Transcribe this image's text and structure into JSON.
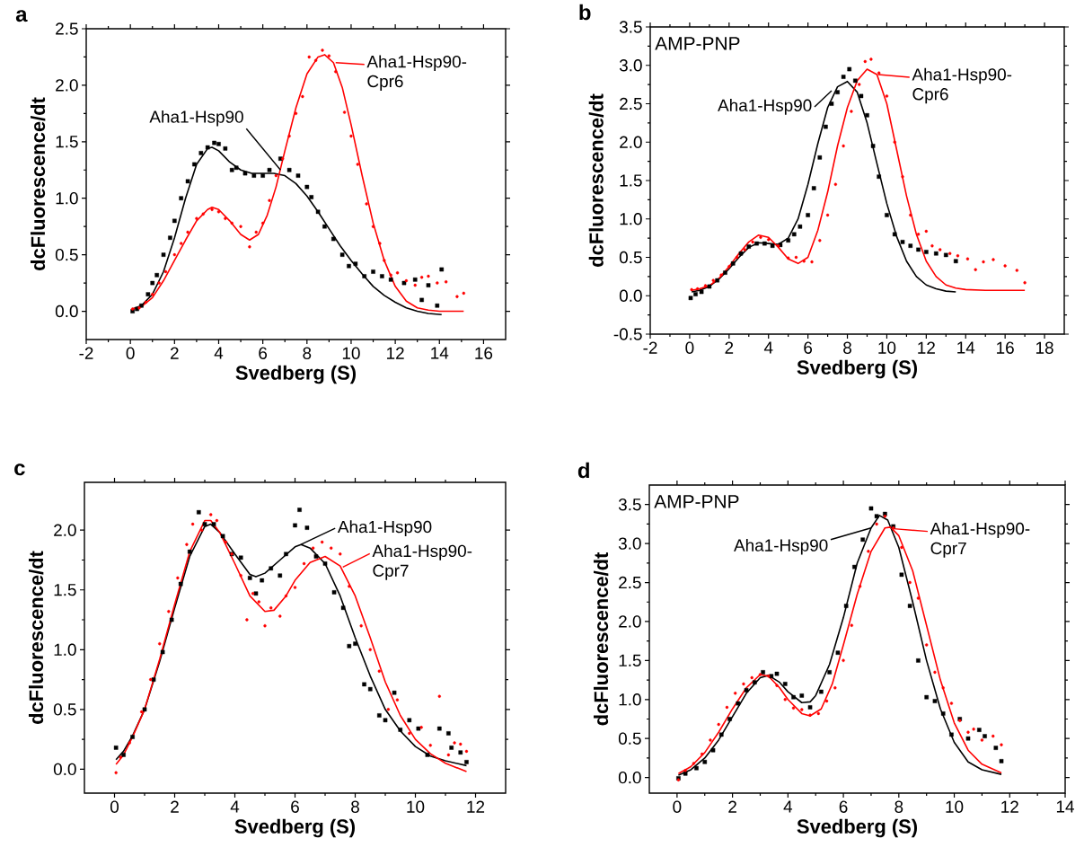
{
  "chart_data": [
    {
      "type": "scatter",
      "title": "a",
      "xlabel": "Svedberg (S)",
      "ylabel": "dcFluorescence/dt",
      "xlim": [
        -2,
        17
      ],
      "ylim": [
        -0.25,
        2.5
      ],
      "xticks": [
        -2,
        0,
        2,
        4,
        6,
        8,
        10,
        12,
        14,
        16
      ],
      "yticks": [
        {
          "value": 0,
          "label": "0.0"
        },
        0.5,
        {
          "value": 1,
          "label": "1.0"
        },
        1.5,
        {
          "value": 2,
          "label": "2.0"
        },
        2.5
      ],
      "series": [
        {
          "type": "scatter",
          "color": "#000000",
          "marker": "square",
          "x": [
            0.1,
            0.3,
            0.5,
            0.8,
            1,
            1.2,
            1.5,
            1.8,
            2,
            2.3,
            2.6,
            2.9,
            3.2,
            3.5,
            3.8,
            4,
            4.3,
            4.6,
            4.8,
            5.2,
            5.6,
            6,
            6.3,
            6.8,
            7.2,
            7.6,
            8,
            8.2,
            8.5,
            8.8,
            9.2,
            9.6,
            9.9,
            10.2,
            10.6,
            11,
            11.4,
            11.8,
            12.4,
            12.9,
            13.2,
            13.5,
            13.9,
            14.1
          ],
          "values": [
            0.0,
            0.02,
            0.05,
            0.15,
            0.25,
            0.32,
            0.5,
            0.65,
            0.8,
            1.0,
            1.15,
            1.3,
            1.4,
            1.45,
            1.49,
            1.48,
            1.44,
            1.25,
            1.27,
            1.22,
            1.2,
            1.2,
            1.25,
            1.35,
            1.25,
            1.2,
            1.1,
            1.01,
            0.88,
            0.75,
            0.64,
            0.5,
            0.4,
            0.42,
            0.31,
            0.35,
            0.31,
            0.28,
            0.25,
            0.28,
            0.1,
            0.23,
            0.05,
            0.37
          ]
        },
        {
          "type": "scatter",
          "color": "#ff0000",
          "marker": "circle",
          "x": [
            0.1,
            0.4,
            0.7,
            1,
            1.3,
            1.6,
            2,
            2.3,
            2.6,
            3,
            3.3,
            3.7,
            4,
            4.3,
            4.6,
            5,
            5.4,
            5.7,
            6,
            6.3,
            6.6,
            6.9,
            7.2,
            7.5,
            7.8,
            8.1,
            8.4,
            8.7,
            9,
            9.3,
            9.7,
            10,
            10.3,
            10.7,
            11,
            11.3,
            11.5,
            11.8,
            12.1,
            12.5,
            12.9,
            13.2,
            13.5,
            13.9,
            14.3,
            14.8,
            15.1
          ],
          "values": [
            0.02,
            0.03,
            0.08,
            0.15,
            0.25,
            0.35,
            0.5,
            0.6,
            0.7,
            0.82,
            0.86,
            0.9,
            0.88,
            0.82,
            0.78,
            0.75,
            0.57,
            0.7,
            0.78,
            0.98,
            1.2,
            1.35,
            1.55,
            1.75,
            1.9,
            2.25,
            2.22,
            2.31,
            2.26,
            2.12,
            1.76,
            1.55,
            1.3,
            0.95,
            0.75,
            0.6,
            0.45,
            0.32,
            0.34,
            0.27,
            0.23,
            0.3,
            0.31,
            0.25,
            0.26,
            0.13,
            0.16
          ]
        },
        {
          "type": "line",
          "color": "#000000",
          "marker": "none",
          "x": [
            0.1,
            0.5,
            1,
            1.5,
            2,
            2.5,
            3,
            3.5,
            3.7,
            4,
            4.5,
            5,
            5.5,
            6,
            6.5,
            7,
            7.5,
            8,
            8.5,
            9,
            9.5,
            10,
            10.5,
            11,
            11.5,
            12,
            12.5,
            13,
            13.5,
            14.1
          ],
          "values": [
            0.02,
            0.05,
            0.15,
            0.35,
            0.65,
            1.0,
            1.3,
            1.44,
            1.45,
            1.42,
            1.32,
            1.25,
            1.22,
            1.22,
            1.22,
            1.2,
            1.13,
            1.02,
            0.88,
            0.73,
            0.58,
            0.45,
            0.33,
            0.22,
            0.14,
            0.08,
            0.03,
            0.0,
            -0.02,
            -0.03
          ]
        },
        {
          "type": "line",
          "color": "#ff0000",
          "marker": "none",
          "x": [
            0.1,
            0.5,
            1,
            1.5,
            2,
            2.5,
            3,
            3.5,
            3.7,
            4,
            4.5,
            5,
            5.4,
            5.8,
            6.2,
            6.6,
            7,
            7.5,
            8,
            8.5,
            8.8,
            9.2,
            9.6,
            10,
            10.5,
            11,
            11.5,
            12,
            12.5,
            13,
            13.5,
            14,
            15.1
          ],
          "values": [
            0.02,
            0.04,
            0.12,
            0.27,
            0.45,
            0.63,
            0.8,
            0.9,
            0.92,
            0.9,
            0.8,
            0.68,
            0.63,
            0.68,
            0.85,
            1.1,
            1.42,
            1.8,
            2.1,
            2.25,
            2.27,
            2.2,
            1.98,
            1.65,
            1.2,
            0.78,
            0.45,
            0.22,
            0.09,
            0.03,
            0.01,
            0.0,
            0.0
          ]
        }
      ],
      "annotations": [
        {
          "text": "Aha1-Hsp90",
          "x": 6.8,
          "y": 1.25
        },
        {
          "text": "Aha1-Hsp90-Cpr6",
          "x": 9.3,
          "y": 2.2
        }
      ]
    },
    {
      "type": "scatter",
      "title": "b",
      "xlabel": "Svedberg (S)",
      "ylabel": "dcFluorescence/dt",
      "xlim": [
        -2,
        19
      ],
      "ylim": [
        -0.5,
        3.5
      ],
      "xticks": [
        -2,
        0,
        2,
        4,
        6,
        8,
        10,
        12,
        14,
        16,
        18
      ],
      "yticks": [
        -0.5,
        {
          "value": 0,
          "label": "0.0"
        },
        0.5,
        {
          "value": 1,
          "label": "1.0"
        },
        1.5,
        {
          "value": 2,
          "label": "2.0"
        },
        2.5,
        {
          "value": 3,
          "label": "3.0"
        },
        3.5
      ],
      "series": [
        {
          "type": "scatter",
          "color": "#000000",
          "marker": "square",
          "x": [
            0.05,
            0.3,
            0.6,
            1,
            1.4,
            1.8,
            2.2,
            2.6,
            3,
            3.4,
            3.8,
            4.2,
            4.6,
            5,
            5.3,
            5.6,
            6,
            6.3,
            6.6,
            6.9,
            7.2,
            7.5,
            7.8,
            8.1,
            8.4,
            8.7,
            9,
            9.3,
            9.6,
            10,
            10.4,
            10.8,
            11.2,
            11.6,
            12,
            12.5,
            13,
            13.5
          ],
          "values": [
            -0.03,
            0.02,
            0.05,
            0.12,
            0.2,
            0.3,
            0.42,
            0.55,
            0.64,
            0.68,
            0.68,
            0.65,
            0.66,
            0.72,
            0.8,
            0.9,
            1.05,
            1.4,
            1.8,
            2.2,
            2.5,
            2.65,
            2.85,
            2.95,
            2.8,
            2.6,
            2.35,
            1.95,
            1.55,
            1.05,
            0.8,
            0.7,
            0.65,
            0.6,
            0.57,
            0.55,
            0.53,
            0.45
          ]
        },
        {
          "type": "scatter",
          "color": "#ff0000",
          "marker": "circle",
          "x": [
            0.1,
            0.4,
            0.8,
            1.2,
            1.6,
            2,
            2.4,
            2.8,
            3.2,
            3.6,
            4,
            4.5,
            5,
            5.4,
            5.8,
            6.2,
            6.6,
            7,
            7.4,
            7.8,
            8.2,
            8.6,
            8.9,
            9.2,
            9.6,
            10,
            10.4,
            10.8,
            11.2,
            11.6,
            12,
            12.3,
            12.7,
            13.2,
            13.6,
            14.1,
            14.5,
            14.9,
            15.4,
            16,
            16.6,
            17
          ],
          "values": [
            0.08,
            0.09,
            0.13,
            0.2,
            0.27,
            0.38,
            0.5,
            0.6,
            0.7,
            0.76,
            0.73,
            0.65,
            0.49,
            0.5,
            0.45,
            0.44,
            0.72,
            1.05,
            1.45,
            1.95,
            2.4,
            2.75,
            3.05,
            3.08,
            2.9,
            2.6,
            2.0,
            1.55,
            1.05,
            0.8,
            0.84,
            0.65,
            0.6,
            0.55,
            0.52,
            0.48,
            0.34,
            0.44,
            0.47,
            0.39,
            0.33,
            0.17
          ]
        },
        {
          "type": "line",
          "color": "#000000",
          "marker": "none",
          "x": [
            0.1,
            0.5,
            1,
            1.5,
            2,
            2.5,
            3,
            3.5,
            4,
            4.5,
            5,
            5.5,
            6,
            6.5,
            7,
            7.5,
            8,
            8.5,
            9,
            9.5,
            10,
            10.5,
            11,
            11.5,
            12,
            12.5,
            13,
            13.5
          ],
          "values": [
            0.05,
            0.07,
            0.12,
            0.22,
            0.35,
            0.5,
            0.63,
            0.69,
            0.68,
            0.67,
            0.75,
            1.0,
            1.45,
            1.98,
            2.45,
            2.72,
            2.79,
            2.65,
            2.25,
            1.72,
            1.2,
            0.77,
            0.45,
            0.25,
            0.14,
            0.09,
            0.06,
            0.05
          ]
        },
        {
          "type": "line",
          "color": "#ff0000",
          "marker": "none",
          "x": [
            0.1,
            0.5,
            1,
            1.5,
            2,
            2.5,
            3,
            3.5,
            4,
            4.5,
            5,
            5.5,
            6,
            6.5,
            7,
            7.5,
            8,
            8.5,
            9,
            9.5,
            10,
            10.5,
            11,
            11.5,
            12,
            12.5,
            13,
            13.5,
            14,
            15,
            17
          ],
          "values": [
            0.07,
            0.09,
            0.13,
            0.23,
            0.38,
            0.55,
            0.7,
            0.79,
            0.76,
            0.63,
            0.48,
            0.42,
            0.5,
            0.85,
            1.35,
            1.95,
            2.45,
            2.8,
            2.95,
            2.88,
            2.5,
            1.9,
            1.3,
            0.8,
            0.45,
            0.25,
            0.14,
            0.1,
            0.08,
            0.07,
            0.07
          ]
        }
      ],
      "annotations": [
        "AMP-PNP",
        {
          "text": "Aha1-Hsp90",
          "x": 7.2,
          "y": 2.67
        },
        {
          "text": "Aha1-Hsp90-Cpr6",
          "x": 9.56,
          "y": 2.88
        }
      ]
    },
    {
      "type": "scatter",
      "title": "c",
      "xlabel": "Svedberg (S)",
      "ylabel": "dcFluorescence/dt",
      "xlim": [
        -1,
        13
      ],
      "ylim": [
        -0.2,
        2.4
      ],
      "xticks": [
        0,
        2,
        4,
        6,
        8,
        10,
        12
      ],
      "yticks": [
        {
          "value": 0,
          "label": "0.0"
        },
        0.5,
        {
          "value": 1,
          "label": "1.0"
        },
        1.5,
        {
          "value": 2,
          "label": "2.0"
        }
      ],
      "series": [
        {
          "type": "scatter",
          "color": "#000000",
          "marker": "square",
          "x": [
            0.05,
            0.3,
            0.6,
            1,
            1.3,
            1.6,
            1.9,
            2.2,
            2.5,
            2.8,
            3,
            3.3,
            3.6,
            3.9,
            4.2,
            4.5,
            4.7,
            4.9,
            5.2,
            5.5,
            5.7,
            6,
            6.15,
            6.4,
            6.7,
            7,
            7.3,
            7.6,
            7.8,
            8,
            8.3,
            8.5,
            8.8,
            9,
            9.3,
            9.5,
            9.8,
            10.1,
            10.4,
            10.8,
            11.1,
            11.2,
            11.5,
            11.7
          ],
          "values": [
            0.18,
            0.12,
            0.27,
            0.5,
            0.75,
            0.98,
            1.25,
            1.55,
            1.82,
            2.15,
            2.05,
            2.05,
            1.95,
            1.8,
            1.77,
            1.6,
            1.47,
            1.58,
            1.68,
            1.62,
            1.8,
            2.04,
            2.17,
            2.02,
            1.78,
            1.72,
            1.48,
            1.35,
            1.03,
            1.05,
            0.71,
            0.67,
            0.45,
            0.41,
            0.64,
            0.33,
            0.41,
            0.34,
            0.12,
            0.34,
            0.3,
            0.18,
            0.14,
            0.06
          ]
        },
        {
          "type": "scatter",
          "color": "#ff0000",
          "marker": "circle",
          "x": [
            0.05,
            0.2,
            0.5,
            0.9,
            1.2,
            1.5,
            1.8,
            2.1,
            2.4,
            2.6,
            2.9,
            3.2,
            3.4,
            3.7,
            3.9,
            4.2,
            4.4,
            4.6,
            4.8,
            5,
            5.2,
            5.5,
            5.7,
            6,
            6.3,
            6.6,
            6.9,
            7.2,
            7.5,
            7.8,
            8.2,
            8.5,
            8.8,
            9.1,
            9.4,
            9.8,
            10.2,
            10.5,
            10.8,
            11.1,
            11.3,
            11.5,
            11.7
          ],
          "values": [
            -0.03,
            0.1,
            0.22,
            0.48,
            0.75,
            1.05,
            1.32,
            1.6,
            1.88,
            2.05,
            2.0,
            2.13,
            2.08,
            1.9,
            1.8,
            1.62,
            1.25,
            1.47,
            1.4,
            1.2,
            1.35,
            1.28,
            1.45,
            1.52,
            1.72,
            1.85,
            1.9,
            1.85,
            1.8,
            1.53,
            1.2,
            1.0,
            0.82,
            0.5,
            0.58,
            0.3,
            0.35,
            0.2,
            0.61,
            0.12,
            0.22,
            0.21,
            0.15
          ]
        },
        {
          "type": "line",
          "color": "#000000",
          "marker": "none",
          "x": [
            0.05,
            0.3,
            0.6,
            1,
            1.5,
            2,
            2.5,
            3,
            3.2,
            3.5,
            4,
            4.5,
            4.7,
            5,
            5.5,
            6,
            6.2,
            6.5,
            7,
            7.5,
            8,
            8.5,
            9,
            9.5,
            10,
            10.5,
            11,
            11.7
          ],
          "values": [
            0.08,
            0.15,
            0.28,
            0.5,
            0.9,
            1.35,
            1.78,
            2.03,
            2.05,
            1.98,
            1.8,
            1.63,
            1.61,
            1.64,
            1.75,
            1.86,
            1.88,
            1.85,
            1.72,
            1.45,
            1.1,
            0.78,
            0.5,
            0.32,
            0.19,
            0.11,
            0.07,
            0.03
          ]
        },
        {
          "type": "line",
          "color": "#ff0000",
          "marker": "none",
          "x": [
            0.05,
            0.3,
            0.6,
            1,
            1.5,
            2,
            2.5,
            3,
            3.2,
            3.5,
            4,
            4.5,
            5,
            5.3,
            5.7,
            6,
            6.5,
            7,
            7.5,
            8,
            8.5,
            9,
            9.5,
            10,
            10.5,
            11,
            11.7
          ],
          "values": [
            0.04,
            0.12,
            0.27,
            0.5,
            0.92,
            1.38,
            1.82,
            2.08,
            2.08,
            1.98,
            1.72,
            1.45,
            1.32,
            1.33,
            1.45,
            1.58,
            1.73,
            1.78,
            1.7,
            1.45,
            1.1,
            0.73,
            0.45,
            0.25,
            0.13,
            0.05,
            -0.02
          ]
        }
      ],
      "annotations": [
        {
          "text": "Aha1-Hsp90",
          "x": 6.2,
          "y": 1.88
        },
        {
          "text": "Aha1-Hsp90-Cpr7",
          "x": 7.59,
          "y": 1.69
        }
      ]
    },
    {
      "type": "scatter",
      "title": "d",
      "xlabel": "Svedberg (S)",
      "ylabel": "dcFluorescence/dt",
      "xlim": [
        -1,
        14
      ],
      "ylim": [
        -0.2,
        3.75
      ],
      "xticks": [
        0,
        2,
        4,
        6,
        8,
        10,
        12,
        14
      ],
      "yticks": [
        {
          "value": 0,
          "label": "0.0"
        },
        0.5,
        {
          "value": 1,
          "label": "1.0"
        },
        1.5,
        {
          "value": 2,
          "label": "2.0"
        },
        2.5,
        {
          "value": 3,
          "label": "3.0"
        },
        3.5
      ],
      "series": [
        {
          "type": "scatter",
          "color": "#000000",
          "marker": "square",
          "x": [
            0.05,
            0.3,
            0.7,
            1,
            1.3,
            1.6,
            1.9,
            2.2,
            2.5,
            2.8,
            3.1,
            3.4,
            3.6,
            3.9,
            4.2,
            4.5,
            4.8,
            5.2,
            5.5,
            5.8,
            6.1,
            6.4,
            6.7,
            7,
            7.2,
            7.5,
            7.8,
            8.1,
            8.4,
            8.7,
            9,
            9.3,
            9.6,
            9.9,
            10.2,
            10.5,
            10.9,
            11.1,
            11.5,
            11.7
          ],
          "values": [
            -0.01,
            0.05,
            0.12,
            0.2,
            0.35,
            0.55,
            0.75,
            0.95,
            1.12,
            1.22,
            1.35,
            1.3,
            1.33,
            1.2,
            1.03,
            1.05,
            0.9,
            1.1,
            1.35,
            1.6,
            2.2,
            2.7,
            3.05,
            3.45,
            3.35,
            3.38,
            3.22,
            2.6,
            2.2,
            1.5,
            1.03,
            0.98,
            0.82,
            0.55,
            0.75,
            0.5,
            0.61,
            0.53,
            0.38,
            0.21
          ]
        },
        {
          "type": "scatter",
          "color": "#ff0000",
          "marker": "circle",
          "x": [
            0.05,
            0.3,
            0.6,
            0.9,
            1.2,
            1.5,
            1.8,
            2.1,
            2.4,
            2.7,
            3,
            3.3,
            3.6,
            3.9,
            4.2,
            4.5,
            4.8,
            5.1,
            5.4,
            5.7,
            6,
            6.3,
            6.6,
            6.9,
            7.2,
            7.5,
            7.8,
            8.1,
            8.4,
            8.7,
            9,
            9.3,
            9.6,
            9.9,
            10.2,
            10.5,
            10.7,
            11,
            11.4,
            11.7
          ],
          "values": [
            -0.03,
            0.09,
            0.18,
            0.3,
            0.48,
            0.68,
            0.9,
            1.08,
            1.2,
            1.28,
            1.32,
            1.3,
            1.18,
            1.0,
            0.89,
            0.87,
            0.8,
            0.82,
            0.98,
            1.15,
            1.5,
            1.95,
            2.45,
            2.9,
            3.25,
            3.35,
            3.2,
            2.95,
            2.5,
            2.3,
            1.7,
            1.35,
            1.15,
            0.95,
            0.73,
            0.58,
            0.62,
            0.48,
            0.53,
            0.42
          ]
        },
        {
          "type": "line",
          "color": "#000000",
          "marker": "none",
          "x": [
            0.05,
            0.5,
            1,
            1.5,
            2,
            2.5,
            3,
            3.3,
            3.7,
            4,
            4.5,
            4.8,
            5,
            5.5,
            6,
            6.5,
            7,
            7.3,
            7.6,
            8,
            8.5,
            9,
            9.5,
            10,
            10.5,
            11,
            11.7
          ],
          "values": [
            0.03,
            0.1,
            0.25,
            0.48,
            0.78,
            1.08,
            1.28,
            1.31,
            1.22,
            1.1,
            0.96,
            0.97,
            1.05,
            1.45,
            2.05,
            2.75,
            3.2,
            3.36,
            3.3,
            2.95,
            2.25,
            1.5,
            0.88,
            0.45,
            0.2,
            0.1,
            0.04
          ]
        },
        {
          "type": "line",
          "color": "#ff0000",
          "marker": "none",
          "x": [
            0.05,
            0.5,
            1,
            1.5,
            2,
            2.5,
            3,
            3.3,
            3.7,
            4,
            4.5,
            4.8,
            5.2,
            5.6,
            6,
            6.5,
            7,
            7.5,
            7.7,
            8,
            8.5,
            9,
            9.5,
            10,
            10.5,
            11,
            11.7
          ],
          "values": [
            0.05,
            0.14,
            0.32,
            0.58,
            0.88,
            1.15,
            1.32,
            1.3,
            1.15,
            1.0,
            0.82,
            0.79,
            0.88,
            1.2,
            1.7,
            2.35,
            2.9,
            3.2,
            3.21,
            3.1,
            2.65,
            1.95,
            1.25,
            0.7,
            0.35,
            0.17,
            0.06
          ]
        }
      ],
      "annotations": [
        "AMP-PNP",
        {
          "text": "Aha1-Hsp90",
          "x": 7,
          "y": 3.2
        },
        {
          "text": "Aha1-Hsp90-Cpr7",
          "x": 7.81,
          "y": 3.19
        }
      ]
    }
  ]
}
